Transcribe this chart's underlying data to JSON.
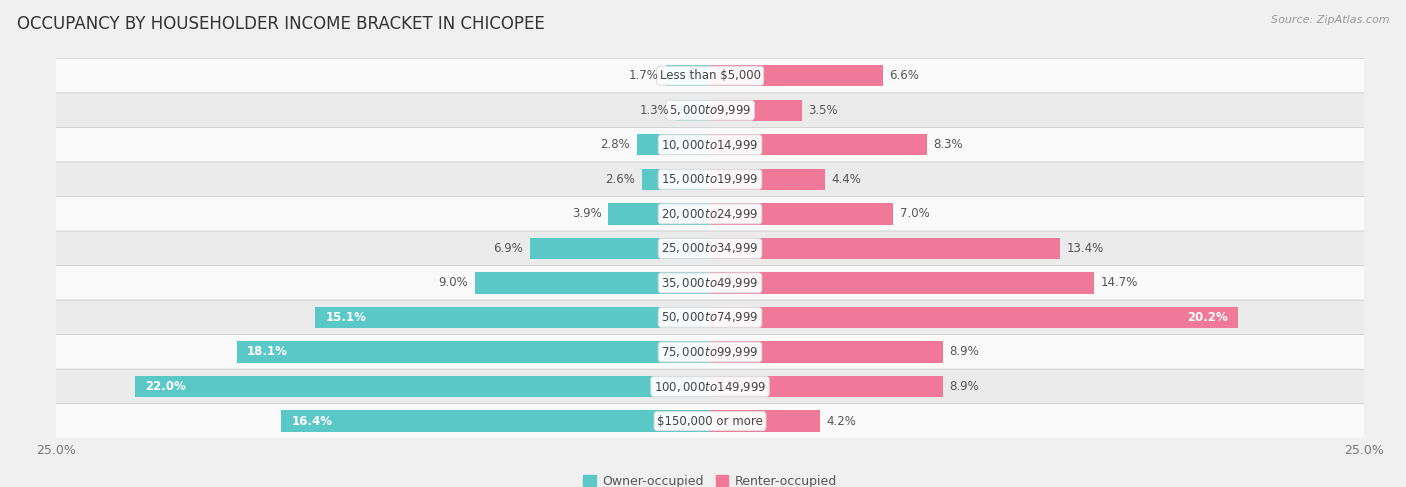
{
  "title": "OCCUPANCY BY HOUSEHOLDER INCOME BRACKET IN CHICOPEE",
  "source": "Source: ZipAtlas.com",
  "categories": [
    "Less than $5,000",
    "$5,000 to $9,999",
    "$10,000 to $14,999",
    "$15,000 to $19,999",
    "$20,000 to $24,999",
    "$25,000 to $34,999",
    "$35,000 to $49,999",
    "$50,000 to $74,999",
    "$75,000 to $99,999",
    "$100,000 to $149,999",
    "$150,000 or more"
  ],
  "owner_values": [
    1.7,
    1.3,
    2.8,
    2.6,
    3.9,
    6.9,
    9.0,
    15.1,
    18.1,
    22.0,
    16.4
  ],
  "renter_values": [
    6.6,
    3.5,
    8.3,
    4.4,
    7.0,
    13.4,
    14.7,
    20.2,
    8.9,
    8.9,
    4.2
  ],
  "owner_color": "#5bc8c8",
  "renter_color": "#f07898",
  "owner_label": "Owner-occupied",
  "renter_label": "Renter-occupied",
  "xlim": 25.0,
  "bar_height": 0.62,
  "bg_color": "#f0f0f0",
  "row_bg_light": "#fafafa",
  "row_bg_dark": "#ebebeb",
  "title_fontsize": 12,
  "label_fontsize": 8.5,
  "axis_label_fontsize": 9,
  "legend_fontsize": 9
}
